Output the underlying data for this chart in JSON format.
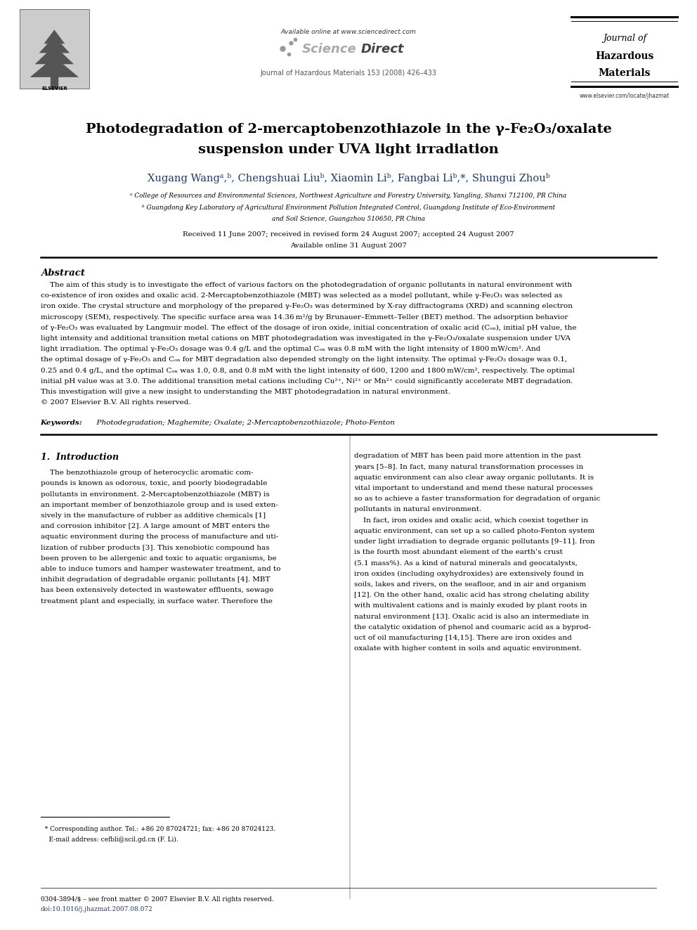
{
  "page_width": 9.92,
  "page_height": 13.23,
  "bg_color": "#ffffff",
  "header_available": "Available online at www.sciencedirect.com",
  "header_journal_line": "Journal of Hazardous Materials 153 (2008) 426–433",
  "journal_name1": "Journal of",
  "journal_name2": "Hazardous",
  "journal_name3": "Materials",
  "journal_website": "www.elsevier.com/locate/jhazmat",
  "title_line1": "Photodegradation of 2-mercaptobenzothiazole in the γ-Fe₂O₃/oxalate",
  "title_line2": "suspension under UVA light irradiation",
  "authors": "Xugang Wangᵃ,ᵇ, Chengshuai Liuᵇ, Xiaomin Liᵇ, Fangbai Liᵇ,*, Shungui Zhouᵇ",
  "affil_a": "ᵃ College of Resources and Environmental Sciences, Northwest Agriculture and Forestry University, Yangling, Shanxi 712100, PR China",
  "affil_b1": "ᵇ Guangdong Key Laboratory of Agricultural Environment Pollution Integrated Control, Guangdong Institute of Eco-Environment",
  "affil_b2": "and Soil Science, Guangzhou 510650, PR China",
  "received": "Received 11 June 2007; received in revised form 24 August 2007; accepted 24 August 2007",
  "available_online": "Available online 31 August 2007",
  "abstract_title": "Abstract",
  "abstract_lines": [
    "    The aim of this study is to investigate the effect of various factors on the photodegradation of organic pollutants in natural environment with",
    "co-existence of iron oxides and oxalic acid. 2-Mercaptobenzothiazole (MBT) was selected as a model pollutant, while γ-Fe₂O₃ was selected as",
    "iron oxide. The crystal structure and morphology of the prepared γ-Fe₂O₃ was determined by X-ray diffractograms (XRD) and scanning electron",
    "microscopy (SEM), respectively. The specific surface area was 14.36 m²/g by Brunauer–Emmett–Teller (BET) method. The adsorption behavior",
    "of γ-Fe₂O₃ was evaluated by Langmuir model. The effect of the dosage of iron oxide, initial concentration of oxalic acid (Cₒₙ), initial pH value, the",
    "light intensity and additional transition metal cations on MBT photodegradation was investigated in the γ-Fe₂O₃/oxalate suspension under UVA",
    "light irradiation. The optimal γ-Fe₂O₃ dosage was 0.4 g/L and the optimal Cₒₙ was 0.8 mM with the light intensity of 1800 mW/cm². And",
    "the optimal dosage of γ-Fe₂O₃ and Cₒₙ for MBT degradation also depended strongly on the light intensity. The optimal γ-Fe₂O₃ dosage was 0.1,",
    "0.25 and 0.4 g/L, and the optimal Cₒₙ was 1.0, 0.8, and 0.8 mM with the light intensity of 600, 1200 and 1800 mW/cm², respectively. The optimal",
    "initial pH value was at 3.0. The additional transition metal cations including Cu²⁺, Ni²⁺ or Mn²⁺ could significantly accelerate MBT degradation.",
    "This investigation will give a new insight to understanding the MBT photodegradation in natural environment.",
    "© 2007 Elsevier B.V. All rights reserved."
  ],
  "keywords_label": "Keywords:",
  "keywords_text": "  Photodegradation; Maghemite; Oxalate; 2-Mercaptobenzothiazole; Photo-Fenton",
  "intro_title": "1.  Introduction",
  "col1_lines": [
    "    The benzothiazole group of heterocyclic aromatic com-",
    "pounds is known as odorous, toxic, and poorly biodegradable",
    "pollutants in environment. 2-Mercaptobenzothiazole (MBT) is",
    "an important member of benzothiazole group and is used exten-",
    "sively in the manufacture of rubber as additive chemicals [1]",
    "and corrosion inhibitor [2]. A large amount of MBT enters the",
    "aquatic environment during the process of manufacture and uti-",
    "lization of rubber products [3]. This xenobiotic compound has",
    "been proven to be allergenic and toxic to aquatic organisms, be",
    "able to induce tumors and hamper wastewater treatment, and to",
    "inhibit degradation of degradable organic pollutants [4]. MBT",
    "has been extensively detected in wastewater effluents, sewage",
    "treatment plant and especially, in surface water. Therefore the"
  ],
  "col2_lines": [
    "degradation of MBT has been paid more attention in the past",
    "years [5–8]. In fact, many natural transformation processes in",
    "aquatic environment can also clear away organic pollutants. It is",
    "vital important to understand and mend these natural processes",
    "so as to achieve a faster transformation for degradation of organic",
    "pollutants in natural environment.",
    "    In fact, iron oxides and oxalic acid, which coexist together in",
    "aquatic environment, can set up a so called photo-Fenton system",
    "under light irradiation to degrade organic pollutants [9–11]. Iron",
    "is the fourth most abundant element of the earth’s crust",
    "(5.1 mass%). As a kind of natural minerals and geocatalysts,",
    "iron oxides (including oxyhydroxides) are extensively found in",
    "soils, lakes and rivers, on the seafloor, and in air and organism",
    "[12]. On the other hand, oxalic acid has strong chelating ability",
    "with multivalent cations and is mainly exuded by plant roots in",
    "natural environment [13]. Oxalic acid is also an intermediate in",
    "the catalytic oxidation of phenol and coumaric acid as a byprod-",
    "uct of oil manufacturing [14,15]. There are iron oxides and",
    "oxalate with higher content in soils and aquatic environment."
  ],
  "footnote1": "  * Corresponding author. Tel.: +86 20 87024721; fax: +86 20 87024123.",
  "footnote2": "    E-mail address: cefbli@scil.gd.cn (F. Li).",
  "footer1": "0304-3894/$ – see front matter © 2007 Elsevier B.V. All rights reserved.",
  "footer2": "doi:10.1016/j.jhazmat.2007.08.072"
}
